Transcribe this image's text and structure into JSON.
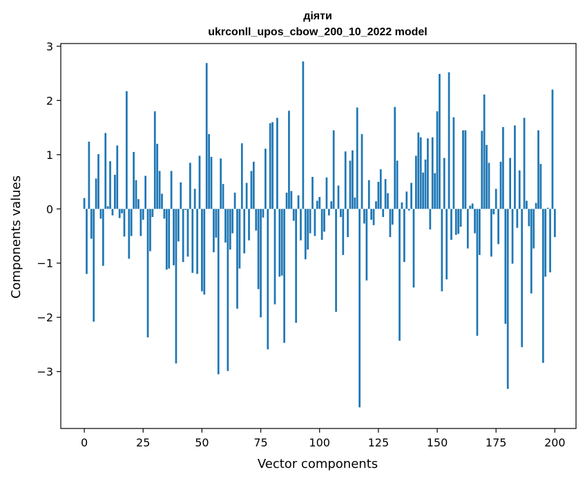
{
  "chart_data": {
    "type": "bar",
    "title": "діяти",
    "subtitle": "ukrconll_upos_cbow_200_10_2022 model",
    "xlabel": "Vector components",
    "ylabel": "Components values",
    "xlim": [
      -10,
      209
    ],
    "ylim": [
      -4.05,
      3.05
    ],
    "xticks": [
      0,
      25,
      50,
      75,
      100,
      125,
      150,
      175,
      200
    ],
    "yticks": [
      -3,
      -2,
      -1,
      0,
      1,
      2,
      3
    ],
    "ytick_labels": [
      "−3",
      "−2",
      "−1",
      "0",
      "1",
      "2",
      "3"
    ],
    "bar_color": "#1f77b4",
    "grid": false,
    "legend": "none",
    "values": [
      0.2,
      -1.2,
      1.24,
      -0.55,
      -2.08,
      0.56,
      1.01,
      -0.18,
      -1.05,
      1.4,
      0.05,
      0.88,
      -0.12,
      0.63,
      1.17,
      -0.17,
      -0.08,
      -0.51,
      2.17,
      -0.92,
      -0.5,
      1.05,
      0.53,
      0.18,
      -0.5,
      -0.2,
      0.61,
      -2.37,
      -0.78,
      -0.15,
      1.8,
      1.2,
      0.7,
      0.28,
      -0.18,
      -1.12,
      -1.1,
      0.7,
      -1.04,
      -2.85,
      -0.6,
      0.49,
      -0.98,
      -0.02,
      -0.88,
      0.85,
      -1.18,
      0.37,
      -1.2,
      0.98,
      -1.52,
      -1.58,
      2.69,
      1.38,
      0.96,
      -0.8,
      -0.53,
      -3.05,
      0.93,
      0.46,
      -0.62,
      -2.99,
      -0.75,
      -0.45,
      0.3,
      -1.84,
      -1.1,
      1.21,
      -0.82,
      0.48,
      -0.58,
      0.7,
      0.87,
      -0.4,
      -1.48,
      -2.0,
      -0.16,
      1.11,
      -2.59,
      1.58,
      1.6,
      -1.76,
      1.68,
      -1.25,
      -1.23,
      -2.47,
      0.3,
      1.81,
      0.33,
      -0.22,
      -2.1,
      0.25,
      -0.58,
      2.72,
      -0.93,
      -0.75,
      -0.45,
      0.59,
      -0.5,
      0.15,
      0.22,
      -0.57,
      -0.42,
      0.58,
      -0.12,
      0.14,
      1.45,
      -1.9,
      0.43,
      -0.15,
      -0.85,
      1.06,
      -0.52,
      0.89,
      1.08,
      0.21,
      1.87,
      -3.66,
      1.38,
      -0.27,
      -1.32,
      0.53,
      -0.2,
      -0.3,
      0.14,
      0.5,
      0.73,
      -0.15,
      0.55,
      0.29,
      -0.52,
      -0.29,
      1.88,
      0.89,
      -2.43,
      0.12,
      -0.98,
      0.32,
      -0.03,
      0.48,
      -1.45,
      0.98,
      1.41,
      1.32,
      0.67,
      0.91,
      1.3,
      -0.38,
      1.32,
      0.66,
      1.8,
      2.49,
      -1.52,
      0.94,
      -1.3,
      2.52,
      -0.57,
      1.69,
      -0.48,
      -0.46,
      -0.33,
      1.45,
      1.45,
      -0.73,
      0.06,
      0.1,
      -0.45,
      -2.34,
      -0.85,
      1.44,
      2.11,
      1.18,
      0.85,
      -0.88,
      -0.1,
      0.37,
      -0.65,
      0.87,
      1.51,
      -2.12,
      -3.32,
      0.94,
      -1.01,
      1.54,
      -0.35,
      0.71,
      -2.55,
      1.68,
      0.15,
      -0.32,
      -1.56,
      -0.73,
      0.11,
      1.45,
      0.83,
      -2.84,
      -1.25,
      0.02,
      -1.17,
      2.2,
      -0.52
    ]
  }
}
